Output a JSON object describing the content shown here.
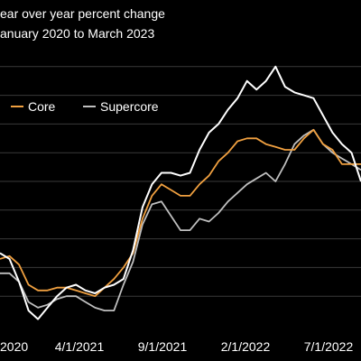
{
  "chart_data": {
    "type": "line",
    "title": "ear over year percent change",
    "subtitle": "anuary 2020 to March 2023",
    "xlabel": "",
    "ylabel": "",
    "x_tick_labels": [
      "2020",
      "4/1/2021",
      "9/1/2021",
      "2/1/2022",
      "7/1/2022"
    ],
    "legend_position": "top-left",
    "grid": true,
    "grid_orientation": "horizontal",
    "y_axis_labels_visible": false,
    "x_start": "2020-01-01",
    "x_end": "2023-03-01",
    "y_range": [
      0,
      10
    ],
    "x": [
      "2020-01",
      "2020-02",
      "2020-03",
      "2020-04",
      "2020-05",
      "2020-06",
      "2020-07",
      "2020-08",
      "2020-09",
      "2020-10",
      "2020-11",
      "2020-12",
      "2021-01",
      "2021-02",
      "2021-03",
      "2021-04",
      "2021-05",
      "2021-06",
      "2021-07",
      "2021-08",
      "2021-09",
      "2021-10",
      "2021-11",
      "2021-12",
      "2022-01",
      "2022-02",
      "2022-03",
      "2022-04",
      "2022-05",
      "2022-06",
      "2022-07",
      "2022-08",
      "2022-09",
      "2022-10",
      "2022-11",
      "2022-12",
      "2023-01",
      "2023-02",
      "2023-03"
    ],
    "series": [
      {
        "name": "",
        "color": "#ffffff",
        "values": [
          2.5,
          2.3,
          1.5,
          0.5,
          0.2,
          0.6,
          1.0,
          1.3,
          1.4,
          1.2,
          1.1,
          1.3,
          1.4,
          1.6,
          2.6,
          4.1,
          4.9,
          5.3,
          5.3,
          5.2,
          5.3,
          6.1,
          6.7,
          7.0,
          7.5,
          7.9,
          8.5,
          8.2,
          8.5,
          9.0,
          8.3,
          8.1,
          8.0,
          7.9,
          7.3,
          6.7,
          6.3,
          6.0,
          5.0
        ]
      },
      {
        "name": "Core",
        "color": "#f0a040",
        "values": [
          2.3,
          2.4,
          2.1,
          1.4,
          1.2,
          1.2,
          1.3,
          1.3,
          1.2,
          1.1,
          1.0,
          1.3,
          1.6,
          2.0,
          2.5,
          3.7,
          4.5,
          4.9,
          4.7,
          4.5,
          4.5,
          4.9,
          5.2,
          5.7,
          6.0,
          6.4,
          6.5,
          6.5,
          6.3,
          6.2,
          6.1,
          6.1,
          6.5,
          6.8,
          6.3,
          6.1,
          5.6,
          5.6,
          5.6
        ]
      },
      {
        "name": "Supercore",
        "color": "#bfbfbf",
        "values": [
          1.8,
          1.8,
          1.5,
          0.8,
          0.6,
          0.7,
          0.9,
          1.0,
          1.0,
          0.8,
          0.6,
          0.5,
          0.5,
          1.4,
          2.2,
          3.5,
          4.2,
          4.3,
          3.8,
          3.3,
          3.3,
          3.7,
          3.6,
          3.9,
          4.3,
          4.6,
          4.9,
          5.1,
          5.3,
          5.0,
          5.6,
          6.3,
          6.6,
          6.8,
          6.3,
          6.0,
          5.8,
          5.6,
          5.4
        ]
      }
    ]
  }
}
